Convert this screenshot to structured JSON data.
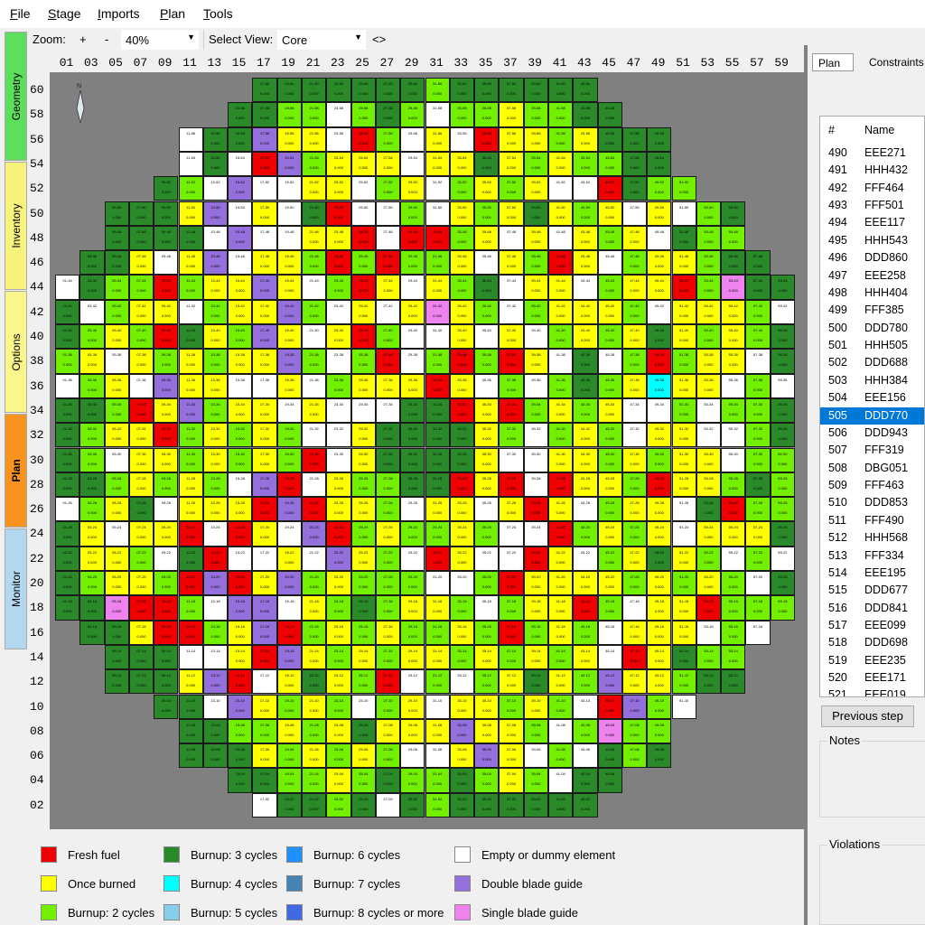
{
  "menu": [
    "File",
    "Stage",
    "Imports",
    "Plan",
    "Tools"
  ],
  "sidebar_tabs": [
    {
      "label": "Geometry",
      "color": "#5ddf5d"
    },
    {
      "label": "Inventory",
      "color": "#f7f27c"
    },
    {
      "label": "Options",
      "color": "#fbf68c"
    },
    {
      "label": "Plan",
      "color": "#f7931e",
      "active": true
    },
    {
      "label": "Monitor",
      "color": "#b3d7ee"
    }
  ],
  "toolbar": {
    "zoom_label": "Zoom:",
    "zoom_in": "+",
    "zoom_out": "-",
    "zoom_value": "40%",
    "view_label": "Select View:",
    "view_value": "Core",
    "swap": "<>"
  },
  "core": {
    "column_labels": [
      "01",
      "03",
      "05",
      "07",
      "09",
      "11",
      "13",
      "15",
      "17",
      "19",
      "21",
      "23",
      "25",
      "27",
      "29",
      "31",
      "33",
      "35",
      "37",
      "39",
      "41",
      "43",
      "45",
      "47",
      "49",
      "51",
      "53",
      "55",
      "57",
      "59"
    ],
    "row_labels": [
      "60",
      "58",
      "56",
      "54",
      "52",
      "50",
      "48",
      "46",
      "44",
      "42",
      "40",
      "38",
      "36",
      "34",
      "32",
      "30",
      "28",
      "26",
      "24",
      "22",
      "20",
      "18",
      "16",
      "14",
      "12",
      "10",
      "08",
      "06",
      "04",
      "02"
    ],
    "cell_value_text": "0.000",
    "color_codes": {
      "R": "#f00000",
      "Y": "#ffff00",
      "L": "#73f000",
      "G": "#2a8a2a",
      "C": "#00ffff",
      "W": "#ffffff",
      "P": "#9370db",
      "K": "#ee82ee"
    },
    "rows": [
      "........GGGGGGGLGGGGGG........",
      ".......GGLLWLGLWLLYLLGG.......",
      ".....WGGPYYWRLWYWRYYLYGGG.....",
      ".....WGWRPLYYYWYYGYLYLLGG.....",
      "....GLWPWWYYWLYWLYLYWWRGLL....",
      "..GGGYPWYWGRWWLWYLYGYLYWYWLG..",
      "..GGGGWPWWYYRWRRLYWYWYLYWGLL..",
      ".GGYWYPWYYLRLRLLYWYLRYWLYYLGG.",
      "WGLLRLYYPYWLRYWYLGWYYWLYYRLKGG",
      "GWLYYWLYYPLWYWYKYLWLYYYLWYYYLW",
      "GLYLRGYLPYWYRLWWYWYWLYLYGYLYLG",
      "LYWYLYLYYPLWLRWLRLRYWGWLRLYYWG",
      "WLYWPYYWWYWLYYYRYWLWLGLYCYYWLW",
      "GGLRYPLYYWYWWWGGRYRLYLYWWLWLLG",
      "GLYYRLYLYLWWYGGGGYLWLYLWYYWWLG",
      "GLWYYLYLYLRWYGGGGYWWYYLYLYYWLL",
      "GGLYLYLWPRWYLLGGRYRWRYYLRYYLGL",
      "WLYGWYYYRPRYYLWYYWYRYWLYYWGRLL",
      "GYWYYRWRYWPRLYLLYLWWRLYLYWYYYG",
      "GYYLWGRWWYWPYLWRYWWRYWLYGYLWLW",
      "GLYYLRPRYPLYLLLWWLRYYYYLYLYLWG",
      "GGKRRLWPPWYLGLYYLWLYYRLWYYRLLL",
      ".GGYRRLYPRLYLYLLYLRLYLWYYYWLW.",
      "..GGGWWYRPYLYLYYLYLYLYWRYGLL..",
      "..GGGYPRWYGYLRWLWLYGYLPYYLGG..",
      "....GGWPYLYLWLYWYYLYLWRPLW....",
      ".....GGLLYLYGYYYPYYLWLKLL.....",
      ".....GGGYLYLYLWWYPYWLWGLG.....",
      ".......GGLLYLGLLGLYLWGG.......",
      "........WGGLGWGLGGGGGG........"
    ]
  },
  "right_panel": {
    "tabs": [
      "Plan",
      "Constraints"
    ],
    "list_headers": [
      "#",
      "Name"
    ],
    "list": [
      {
        "n": "490",
        "name": "EEE271"
      },
      {
        "n": "491",
        "name": "HHH432"
      },
      {
        "n": "492",
        "name": "FFF464"
      },
      {
        "n": "493",
        "name": "FFF501"
      },
      {
        "n": "494",
        "name": "EEE117"
      },
      {
        "n": "495",
        "name": "HHH543"
      },
      {
        "n": "496",
        "name": "DDD860"
      },
      {
        "n": "497",
        "name": "EEE258"
      },
      {
        "n": "498",
        "name": "HHH404"
      },
      {
        "n": "499",
        "name": "FFF385"
      },
      {
        "n": "500",
        "name": "DDD780"
      },
      {
        "n": "501",
        "name": "HHH505"
      },
      {
        "n": "502",
        "name": "DDD688"
      },
      {
        "n": "503",
        "name": "HHH384"
      },
      {
        "n": "504",
        "name": "EEE156"
      },
      {
        "n": "505",
        "name": "DDD770",
        "selected": true
      },
      {
        "n": "506",
        "name": "DDD943"
      },
      {
        "n": "507",
        "name": "FFF319"
      },
      {
        "n": "508",
        "name": "DBG051"
      },
      {
        "n": "509",
        "name": "FFF463"
      },
      {
        "n": "510",
        "name": "DDD853"
      },
      {
        "n": "511",
        "name": "FFF490"
      },
      {
        "n": "512",
        "name": "HHH568"
      },
      {
        "n": "513",
        "name": "FFF334"
      },
      {
        "n": "514",
        "name": "EEE195"
      },
      {
        "n": "515",
        "name": "DDD677"
      },
      {
        "n": "516",
        "name": "DDD841"
      },
      {
        "n": "517",
        "name": "EEE099"
      },
      {
        "n": "518",
        "name": "DDD698"
      },
      {
        "n": "519",
        "name": "EEE235"
      },
      {
        "n": "520",
        "name": "EEE171"
      },
      {
        "n": "521",
        "name": "EEE019"
      }
    ],
    "previous_step": "Previous step",
    "notes_label": "Notes",
    "violations_label": "Violations"
  },
  "legend": [
    {
      "label": "Fresh fuel",
      "color": "#f00000"
    },
    {
      "label": "Once burned",
      "color": "#ffff00"
    },
    {
      "label": "Burnup: 2 cycles",
      "color": "#73f000"
    },
    {
      "label": "Burnup: 3 cycles",
      "color": "#2a8a2a"
    },
    {
      "label": "Burnup: 4 cycles",
      "color": "#00ffff"
    },
    {
      "label": "Burnup: 5 cycles",
      "color": "#87ceeb"
    },
    {
      "label": "Burnup: 6 cycles",
      "color": "#1e90ff"
    },
    {
      "label": "Burnup: 7 cycles",
      "color": "#4682b4"
    },
    {
      "label": "Burnup: 8 cycles or more",
      "color": "#4169e1"
    },
    {
      "label": "Empty or dummy element",
      "color": "#ffffff"
    },
    {
      "label": "Double blade guide",
      "color": "#9370db"
    },
    {
      "label": "Single blade guide",
      "color": "#ee82ee"
    }
  ]
}
